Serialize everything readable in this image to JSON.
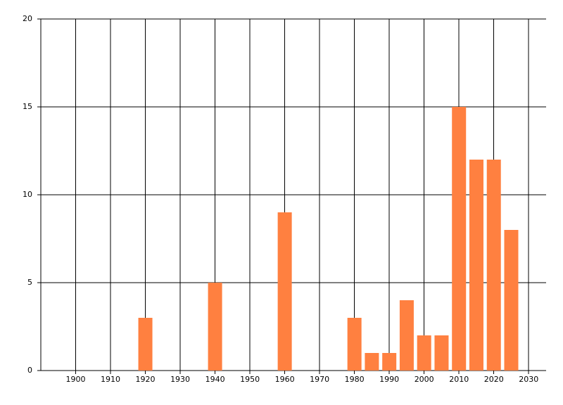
{
  "chart_data": {
    "type": "bar",
    "x": [
      1920,
      1940,
      1960,
      1980,
      1985,
      1990,
      1995,
      2000,
      2005,
      2010,
      2015,
      2020,
      2025
    ],
    "values": [
      3,
      5,
      9,
      3,
      1,
      1,
      4,
      2,
      2,
      15,
      12,
      12,
      8
    ],
    "color": "#ff8040",
    "xlim": [
      1890,
      2035
    ],
    "xticks": [
      1900,
      1910,
      1920,
      1930,
      1940,
      1950,
      1960,
      1970,
      1980,
      1990,
      2000,
      2010,
      2020,
      2030
    ],
    "ylim": [
      0,
      20
    ],
    "yticks": [
      0,
      5,
      10,
      15,
      20
    ],
    "grid": true
  }
}
